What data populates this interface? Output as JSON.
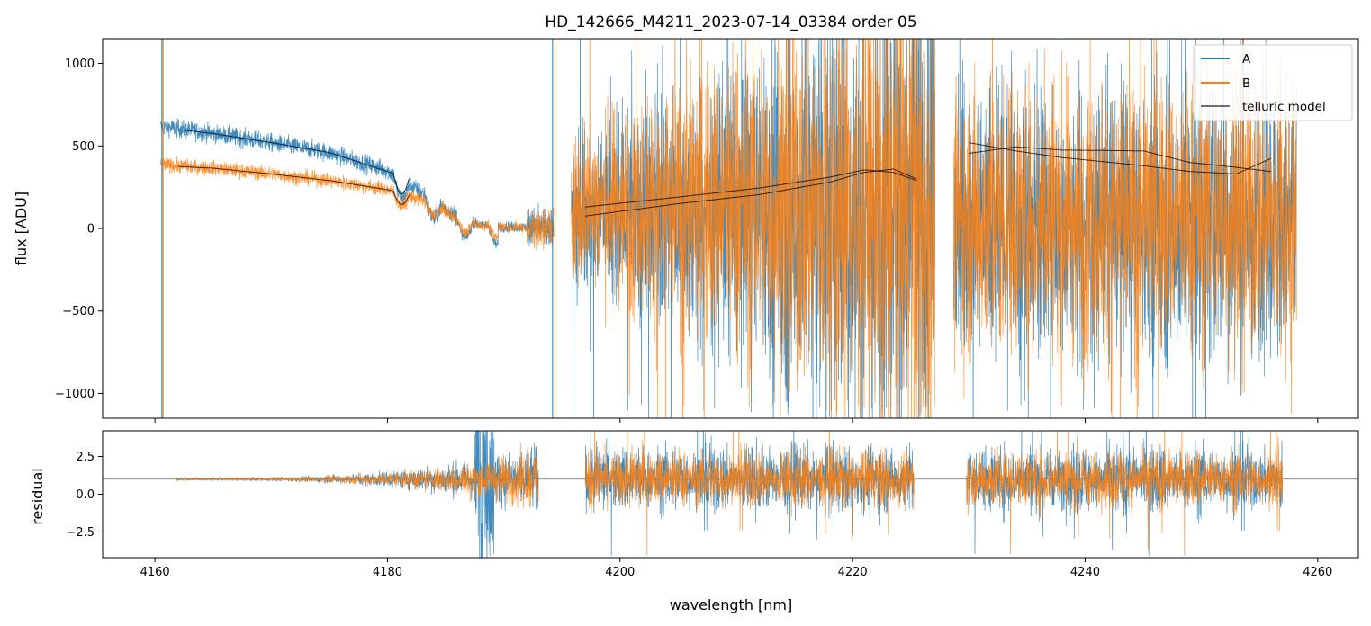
{
  "chart_data": [
    {
      "type": "line",
      "panel": "main",
      "title": "HD_142666_M4211_2023-07-14_03384  order 05",
      "xlabel": "",
      "ylabel": "flux [ADU]",
      "xlim": [
        4155.5,
        4263.5
      ],
      "ylim": [
        -1150,
        1150
      ],
      "xticks": [
        4160,
        4180,
        4200,
        4220,
        4240,
        4260
      ],
      "yticks": [
        -1000,
        -500,
        0,
        500,
        1000
      ],
      "ytick_labels": [
        "−1000",
        "−500",
        "0",
        "500",
        "1000"
      ],
      "grid": false,
      "legend": {
        "placement": "top-right",
        "entries": [
          {
            "label": "A",
            "color": "#1f77b4"
          },
          {
            "label": "B",
            "color": "#ff7f0e"
          },
          {
            "label": "telluric model",
            "color": "#000000"
          }
        ]
      },
      "segments": [
        {
          "x_range": [
            4160.5,
            4194.3
          ]
        },
        {
          "x_range": [
            4195.8,
            4227.1
          ]
        },
        {
          "x_range": [
            4228.7,
            4258.2
          ]
        }
      ],
      "series": [
        {
          "name": "A",
          "color": "#1f77b4",
          "noise": "spectrum",
          "continuum_x": [
            4161,
            4165,
            4170,
            4175,
            4180,
            4184,
            4186,
            4188,
            4190,
            4193
          ],
          "continuum_y": [
            615,
            575,
            520,
            460,
            350,
            170,
            70,
            20,
            10,
            5
          ]
        },
        {
          "name": "B",
          "color": "#ff7f0e",
          "noise": "spectrum",
          "continuum_x": [
            4161,
            4165,
            4170,
            4175,
            4180,
            4184,
            4186,
            4188,
            4190,
            4193
          ],
          "continuum_y": [
            385,
            365,
            330,
            290,
            235,
            150,
            60,
            20,
            10,
            5
          ]
        },
        {
          "name": "telluric model A",
          "color": "#000000",
          "x": [
            4162,
            4165,
            4170,
            4175,
            4180,
            4182,
            4197,
            4205,
            4212,
            4218,
            4221,
            4223.5,
            4225.5,
            4230,
            4234,
            4238,
            4245,
            4249,
            4253,
            4256
          ],
          "y": [
            600,
            575,
            520,
            460,
            345,
            300,
            130,
            190,
            245,
            310,
            355,
            340,
            290,
            520,
            470,
            430,
            380,
            345,
            330,
            425
          ]
        },
        {
          "name": "telluric model B",
          "color": "#000000",
          "x": [
            4162,
            4165,
            4170,
            4175,
            4180,
            4182,
            4197,
            4205,
            4212,
            4218,
            4221,
            4223.5,
            4225.5,
            4230,
            4234,
            4238,
            4245,
            4249,
            4253,
            4256
          ],
          "y": [
            375,
            365,
            330,
            290,
            235,
            200,
            75,
            150,
            205,
            280,
            340,
            360,
            300,
            455,
            495,
            475,
            470,
            400,
            370,
            345
          ]
        }
      ]
    },
    {
      "type": "line",
      "panel": "residual",
      "xlabel": "wavelength [nm]",
      "ylabel": "residual",
      "xlim": [
        4155.5,
        4263.5
      ],
      "ylim": [
        -4.2,
        4.2
      ],
      "xticks": [
        4160,
        4180,
        4200,
        4220,
        4240,
        4260
      ],
      "xtick_labels": [
        "4160",
        "4180",
        "4200",
        "4220",
        "4240",
        "4260"
      ],
      "yticks": [
        -2.5,
        0,
        2.5
      ],
      "ytick_labels": [
        "−2.5",
        "0.0",
        "2.5"
      ],
      "reference_line": 1.0,
      "grid": false,
      "segments": [
        {
          "x_range": [
            4161.8,
            4193.0
          ]
        },
        {
          "x_range": [
            4197.0,
            4225.3
          ]
        },
        {
          "x_range": [
            4229.8,
            4257.0
          ]
        }
      ],
      "series": [
        {
          "name": "A",
          "color": "#1f77b4",
          "center": 1.0
        },
        {
          "name": "B",
          "color": "#ff7f0e",
          "center": 1.0
        }
      ]
    }
  ]
}
